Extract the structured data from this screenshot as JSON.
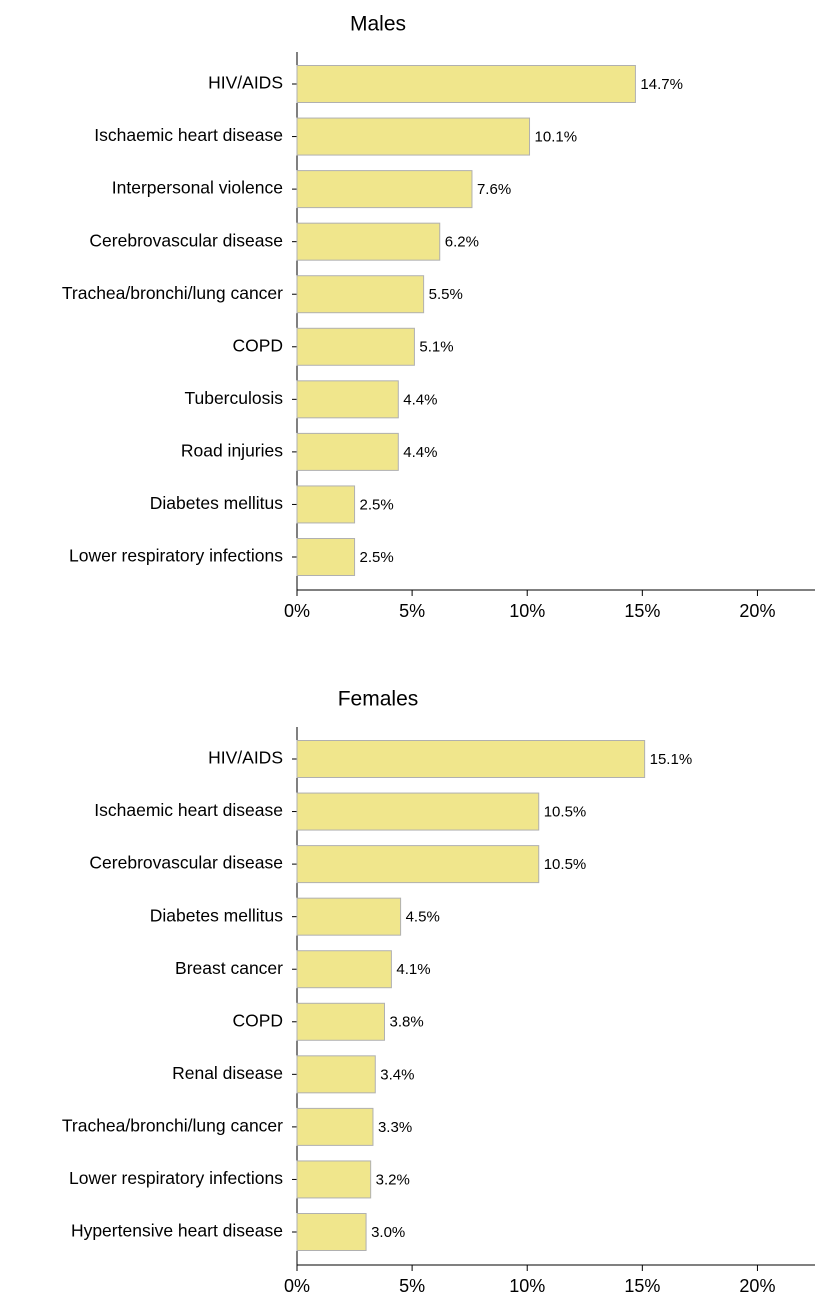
{
  "chart_data": [
    {
      "type": "barh",
      "title": "Males",
      "color": "#f0e68c",
      "categories": [
        "HIV/AIDS",
        "Ischaemic heart disease",
        "Interpersonal violence",
        "Cerebrovascular disease",
        "Trachea/bronchi/lung cancer",
        "COPD",
        "Tuberculosis",
        "Road injuries",
        "Diabetes mellitus",
        "Lower respiratory infections"
      ],
      "values": [
        14.7,
        10.1,
        7.6,
        6.2,
        5.5,
        5.1,
        4.4,
        4.4,
        2.5,
        2.5
      ],
      "value_labels": [
        "14.7%",
        "10.1%",
        "7.6%",
        "6.2%",
        "5.5%",
        "5.1%",
        "4.4%",
        "4.4%",
        "2.5%",
        "2.5%"
      ],
      "xlim": [
        0,
        22.5
      ],
      "xticks": [
        {
          "value": 0,
          "label": "0%"
        },
        {
          "value": 5,
          "label": "5%"
        },
        {
          "value": 10,
          "label": "10%"
        },
        {
          "value": 15,
          "label": "15%"
        },
        {
          "value": 20,
          "label": "20%"
        }
      ]
    },
    {
      "type": "barh",
      "title": "Females",
      "color": "#f0e68c",
      "categories": [
        "HIV/AIDS",
        "Ischaemic heart disease",
        "Cerebrovascular disease",
        "Diabetes mellitus",
        "Breast cancer",
        "COPD",
        "Renal disease",
        "Trachea/bronchi/lung cancer",
        "Lower respiratory infections",
        "Hypertensive heart disease"
      ],
      "values": [
        15.1,
        10.5,
        10.5,
        4.5,
        4.1,
        3.8,
        3.4,
        3.3,
        3.2,
        3.0
      ],
      "value_labels": [
        "15.1%",
        "10.5%",
        "10.5%",
        "4.5%",
        "4.1%",
        "3.8%",
        "3.4%",
        "3.3%",
        "3.2%",
        "3.0%"
      ],
      "xlim": [
        0,
        22.5
      ],
      "xticks": [
        {
          "value": 0,
          "label": "0%"
        },
        {
          "value": 5,
          "label": "5%"
        },
        {
          "value": 10,
          "label": "10%"
        },
        {
          "value": 15,
          "label": "15%"
        },
        {
          "value": 20,
          "label": "20%"
        }
      ]
    }
  ]
}
